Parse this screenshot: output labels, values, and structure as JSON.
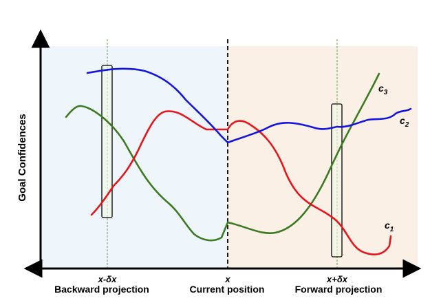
{
  "axis": {
    "ylabel": "Goal Confidences"
  },
  "ticks": {
    "backward": "x-δx",
    "current": "x",
    "forward": "x+δx"
  },
  "regions": {
    "backward": "Backward projection",
    "current": "Current position",
    "forward": "Forward projection"
  },
  "series_labels": {
    "c1": {
      "base": "c",
      "sub": "1"
    },
    "c2": {
      "base": "c",
      "sub": "2"
    },
    "c3": {
      "base": "c",
      "sub": "3"
    }
  },
  "colors": {
    "backward_bg": "#eef6fc",
    "forward_bg": "#fbf0e6",
    "c1": "#e8141a",
    "c2": "#1414e0",
    "c3": "#3c7a22",
    "axis": "#000000",
    "guide": "#4a8a2a",
    "window_fill": "#f3f6e6"
  }
}
